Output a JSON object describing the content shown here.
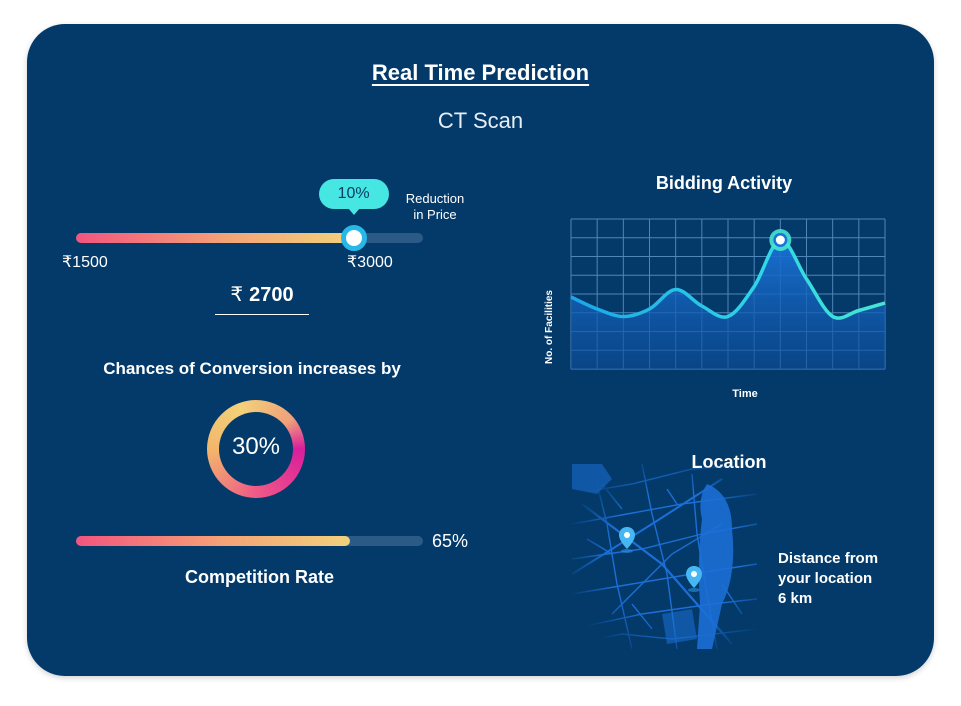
{
  "header": {
    "title": "Real Time Prediction",
    "subtitle": "CT Scan"
  },
  "price_slider": {
    "tooltip": "10%",
    "reduction_label_line1": "Reduction",
    "reduction_label_line2": "in Price",
    "min_label": "₹1500",
    "max_label": "₹3000",
    "fill_fraction": 0.8
  },
  "price": {
    "currency": "₹",
    "value": "2700"
  },
  "conversion": {
    "label": "Chances of Conversion increases by",
    "value": "30%"
  },
  "competition": {
    "value": "65%",
    "fill_fraction": 0.79,
    "label": "Competition Rate"
  },
  "bidding": {
    "title": "Bidding Activity",
    "ylabel": "No. of Facilities",
    "xlabel": "Time"
  },
  "location": {
    "title": "Location",
    "distance_line1": "Distance from",
    "distance_line2": "your location",
    "distance_value": "6 km"
  },
  "colors": {
    "background": "#033a6a",
    "accent": "#46e6e2",
    "gradient_start": "#f2557e",
    "gradient_end": "#f1d27c",
    "chart_line": "#2fd6e6",
    "map": "#1c6fd6"
  },
  "icons": [
    "map-pin-icon",
    "rupee-icon"
  ],
  "chart_data": {
    "type": "line",
    "title": "Bidding Activity",
    "xlabel": "Time",
    "ylabel": "No. of Facilities",
    "x": [
      0,
      1,
      2,
      3,
      4,
      5,
      6,
      7,
      8,
      9,
      10,
      11,
      12
    ],
    "values": [
      4.8,
      4.0,
      3.5,
      4.0,
      5.3,
      4.2,
      3.5,
      5.5,
      8.6,
      6.0,
      3.5,
      3.9,
      4.4
    ],
    "ylim": [
      0,
      10
    ],
    "grid": true,
    "highlight_index": 8
  }
}
